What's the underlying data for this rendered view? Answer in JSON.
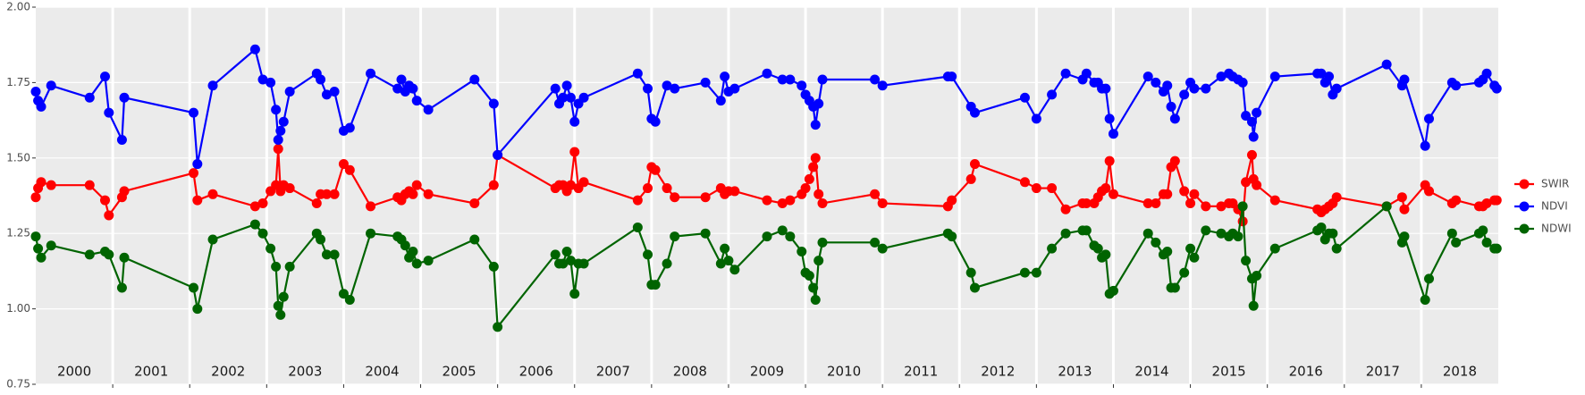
{
  "chart_data": {
    "type": "line",
    "x": [
      2000.0,
      2000.03,
      2000.07,
      2000.2,
      2000.7,
      2000.9,
      2000.95,
      2001.12,
      2001.15,
      2002.05,
      2002.1,
      2002.3,
      2002.85,
      2002.95,
      2003.05,
      2003.12,
      2003.15,
      2003.18,
      2003.22,
      2003.3,
      2003.65,
      2003.7,
      2003.78,
      2003.88,
      2004.0,
      2004.08,
      2004.35,
      2004.7,
      2004.75,
      2004.8,
      2004.85,
      2004.9,
      2004.95,
      2005.1,
      2005.7,
      2005.95,
      2006.0,
      2006.75,
      2006.8,
      2006.85,
      2006.9,
      2006.95,
      2007.0,
      2007.05,
      2007.12,
      2007.82,
      2007.95,
      2008.0,
      2008.05,
      2008.2,
      2008.3,
      2008.7,
      2008.9,
      2008.95,
      2009.0,
      2009.08,
      2009.5,
      2009.7,
      2009.8,
      2009.95,
      2010.0,
      2010.05,
      2010.1,
      2010.13,
      2010.17,
      2010.22,
      2010.9,
      2011.0,
      2011.85,
      2011.9,
      2012.15,
      2012.2,
      2012.85,
      2013.0,
      2013.2,
      2013.38,
      2013.6,
      2013.65,
      2013.75,
      2013.8,
      2013.85,
      2013.9,
      2013.95,
      2014.0,
      2014.45,
      2014.55,
      2014.65,
      2014.7,
      2014.75,
      2014.8,
      2014.92,
      2015.0,
      2015.05,
      2015.2,
      2015.4,
      2015.5,
      2015.55,
      2015.62,
      2015.68,
      2015.72,
      2015.8,
      2015.82,
      2015.86,
      2016.1,
      2016.65,
      2016.7,
      2016.75,
      2016.8,
      2016.85,
      2016.9,
      2017.55,
      2017.75,
      2017.78,
      2018.05,
      2018.1,
      2018.4,
      2018.45,
      2018.75,
      2018.8,
      2018.85,
      2018.95,
      2018.98
    ],
    "series": [
      {
        "name": "SWIR",
        "color": "#ff0000",
        "values": [
          1.37,
          1.4,
          1.42,
          1.41,
          1.41,
          1.36,
          1.31,
          1.37,
          1.39,
          1.45,
          1.36,
          1.38,
          1.34,
          1.35,
          1.39,
          1.41,
          1.53,
          1.39,
          1.41,
          1.4,
          1.35,
          1.38,
          1.38,
          1.38,
          1.48,
          1.46,
          1.34,
          1.37,
          1.36,
          1.38,
          1.39,
          1.38,
          1.41,
          1.38,
          1.35,
          1.41,
          1.51,
          1.4,
          1.41,
          1.41,
          1.39,
          1.41,
          1.52,
          1.4,
          1.42,
          1.36,
          1.4,
          1.47,
          1.46,
          1.4,
          1.37,
          1.37,
          1.4,
          1.38,
          1.39,
          1.39,
          1.36,
          1.35,
          1.36,
          1.38,
          1.4,
          1.43,
          1.47,
          1.5,
          1.38,
          1.35,
          1.38,
          1.35,
          1.34,
          1.36,
          1.43,
          1.48,
          1.42,
          1.4,
          1.4,
          1.33,
          1.35,
          1.35,
          1.35,
          1.37,
          1.39,
          1.4,
          1.49,
          1.38,
          1.35,
          1.35,
          1.38,
          1.38,
          1.47,
          1.49,
          1.39,
          1.35,
          1.38,
          1.34,
          1.34,
          1.35,
          1.35,
          1.33,
          1.29,
          1.42,
          1.51,
          1.43,
          1.41,
          1.36,
          1.33,
          1.32,
          1.33,
          1.34,
          1.35,
          1.37,
          1.34,
          1.37,
          1.33,
          1.41,
          1.39,
          1.35,
          1.36,
          1.34,
          1.34,
          1.35,
          1.36,
          1.36
        ]
      },
      {
        "name": "NDVI",
        "color": "#0000ff",
        "values": [
          1.72,
          1.69,
          1.67,
          1.74,
          1.7,
          1.77,
          1.65,
          1.56,
          1.7,
          1.65,
          1.48,
          1.74,
          1.86,
          1.76,
          1.75,
          1.66,
          1.56,
          1.59,
          1.62,
          1.72,
          1.78,
          1.76,
          1.71,
          1.72,
          1.59,
          1.6,
          1.78,
          1.73,
          1.76,
          1.72,
          1.74,
          1.73,
          1.69,
          1.66,
          1.76,
          1.68,
          1.51,
          1.73,
          1.68,
          1.7,
          1.74,
          1.7,
          1.62,
          1.68,
          1.7,
          1.78,
          1.73,
          1.63,
          1.62,
          1.74,
          1.73,
          1.75,
          1.69,
          1.77,
          1.72,
          1.73,
          1.78,
          1.76,
          1.76,
          1.74,
          1.71,
          1.69,
          1.67,
          1.61,
          1.68,
          1.76,
          1.76,
          1.74,
          1.77,
          1.77,
          1.67,
          1.65,
          1.7,
          1.63,
          1.71,
          1.78,
          1.76,
          1.78,
          1.75,
          1.75,
          1.73,
          1.73,
          1.63,
          1.58,
          1.77,
          1.75,
          1.72,
          1.74,
          1.67,
          1.63,
          1.71,
          1.75,
          1.73,
          1.73,
          1.77,
          1.78,
          1.77,
          1.76,
          1.75,
          1.64,
          1.62,
          1.57,
          1.65,
          1.77,
          1.78,
          1.78,
          1.75,
          1.77,
          1.71,
          1.73,
          1.81,
          1.74,
          1.76,
          1.54,
          1.63,
          1.75,
          1.74,
          1.75,
          1.76,
          1.78,
          1.74,
          1.73
        ]
      },
      {
        "name": "NDWI",
        "color": "#006400",
        "values": [
          1.24,
          1.2,
          1.17,
          1.21,
          1.18,
          1.19,
          1.18,
          1.07,
          1.17,
          1.07,
          1.0,
          1.23,
          1.28,
          1.25,
          1.2,
          1.14,
          1.01,
          0.98,
          1.04,
          1.14,
          1.25,
          1.23,
          1.18,
          1.18,
          1.05,
          1.03,
          1.25,
          1.24,
          1.23,
          1.21,
          1.17,
          1.19,
          1.15,
          1.16,
          1.23,
          1.14,
          0.94,
          1.18,
          1.15,
          1.15,
          1.19,
          1.16,
          1.05,
          1.15,
          1.15,
          1.27,
          1.18,
          1.08,
          1.08,
          1.15,
          1.24,
          1.25,
          1.15,
          1.2,
          1.16,
          1.13,
          1.24,
          1.26,
          1.24,
          1.19,
          1.12,
          1.11,
          1.07,
          1.03,
          1.16,
          1.22,
          1.22,
          1.2,
          1.25,
          1.24,
          1.12,
          1.07,
          1.12,
          1.12,
          1.2,
          1.25,
          1.26,
          1.26,
          1.21,
          1.2,
          1.17,
          1.18,
          1.05,
          1.06,
          1.25,
          1.22,
          1.18,
          1.19,
          1.07,
          1.07,
          1.12,
          1.2,
          1.17,
          1.26,
          1.25,
          1.24,
          1.25,
          1.24,
          1.34,
          1.16,
          1.1,
          1.01,
          1.11,
          1.2,
          1.26,
          1.27,
          1.23,
          1.25,
          1.25,
          1.2,
          1.34,
          1.22,
          1.24,
          1.03,
          1.1,
          1.25,
          1.22,
          1.25,
          1.26,
          1.22,
          1.2,
          1.2
        ]
      }
    ],
    "xlim": [
      2000,
      2019
    ],
    "year_separators": [
      2001,
      2002,
      2003,
      2004,
      2005,
      2006,
      2007,
      2008,
      2009,
      2010,
      2011,
      2012,
      2013,
      2014,
      2015,
      2016,
      2017,
      2018
    ],
    "year_labels": [
      {
        "value": 2000.5,
        "label": "2000"
      },
      {
        "value": 2001.5,
        "label": "2001"
      },
      {
        "value": 2002.5,
        "label": "2002"
      },
      {
        "value": 2003.5,
        "label": "2003"
      },
      {
        "value": 2004.5,
        "label": "2004"
      },
      {
        "value": 2005.5,
        "label": "2005"
      },
      {
        "value": 2006.5,
        "label": "2006"
      },
      {
        "value": 2007.5,
        "label": "2007"
      },
      {
        "value": 2008.5,
        "label": "2008"
      },
      {
        "value": 2009.5,
        "label": "2009"
      },
      {
        "value": 2010.5,
        "label": "2010"
      },
      {
        "value": 2011.5,
        "label": "2011"
      },
      {
        "value": 2012.5,
        "label": "2012"
      },
      {
        "value": 2013.5,
        "label": "2013"
      },
      {
        "value": 2014.5,
        "label": "2014"
      },
      {
        "value": 2015.5,
        "label": "2015"
      },
      {
        "value": 2016.5,
        "label": "2016"
      },
      {
        "value": 2017.5,
        "label": "2017"
      },
      {
        "value": 2018.5,
        "label": "2018"
      }
    ],
    "ylim": [
      0.75,
      2.0
    ],
    "yticks": [
      0.75,
      {
        "value": 1.0,
        "label": "1.00"
      },
      {
        "value": 1.25,
        "label": "1.25"
      },
      {
        "value": 1.5,
        "label": "1.50"
      },
      {
        "value": 1.75,
        "label": "1.75"
      },
      {
        "value": 2.0,
        "label": "2.00"
      }
    ],
    "grid": true
  }
}
